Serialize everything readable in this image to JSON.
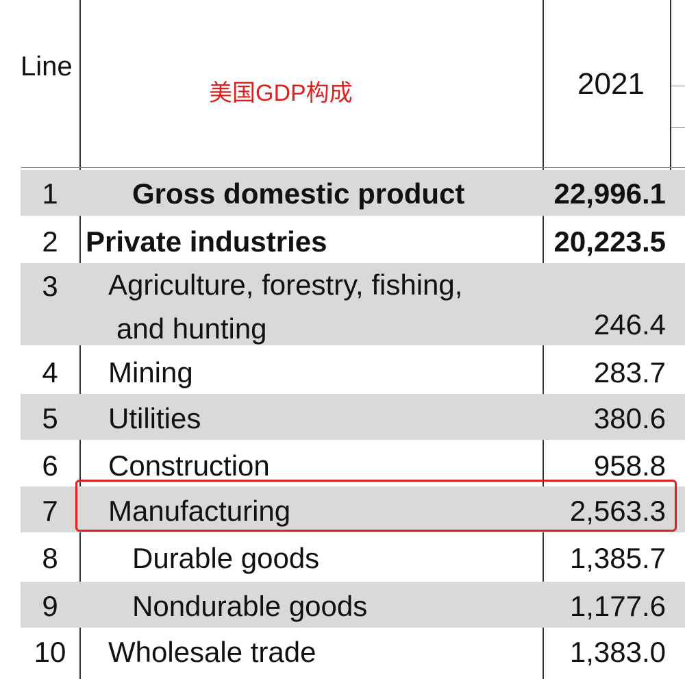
{
  "header": {
    "line_label": "Line",
    "title": "美国GDP构成",
    "year": "2021"
  },
  "rows": [
    {
      "line": "1",
      "label": "Gross domestic product",
      "value": "22,996.1"
    },
    {
      "line": "2",
      "label": "Private industries",
      "value": "20,223.5"
    },
    {
      "line": "3",
      "label": "Agriculture, forestry, fishing,",
      "label2": "and hunting",
      "value": "246.4"
    },
    {
      "line": "4",
      "label": "Mining",
      "value": "283.7"
    },
    {
      "line": "5",
      "label": "Utilities",
      "value": "380.6"
    },
    {
      "line": "6",
      "label": "Construction",
      "value": "958.8"
    },
    {
      "line": "7",
      "label": "Manufacturing",
      "value": "2,563.3"
    },
    {
      "line": "8",
      "label": "Durable goods",
      "value": "1,385.7"
    },
    {
      "line": "9",
      "label": "Nondurable goods",
      "value": "1,177.6"
    },
    {
      "line": "10",
      "label": "Wholesale trade",
      "value": "1,383.0"
    }
  ],
  "colors": {
    "row_shade": "#d9d9d9",
    "highlight_border": "#e02020",
    "title_text": "#e0201f"
  }
}
